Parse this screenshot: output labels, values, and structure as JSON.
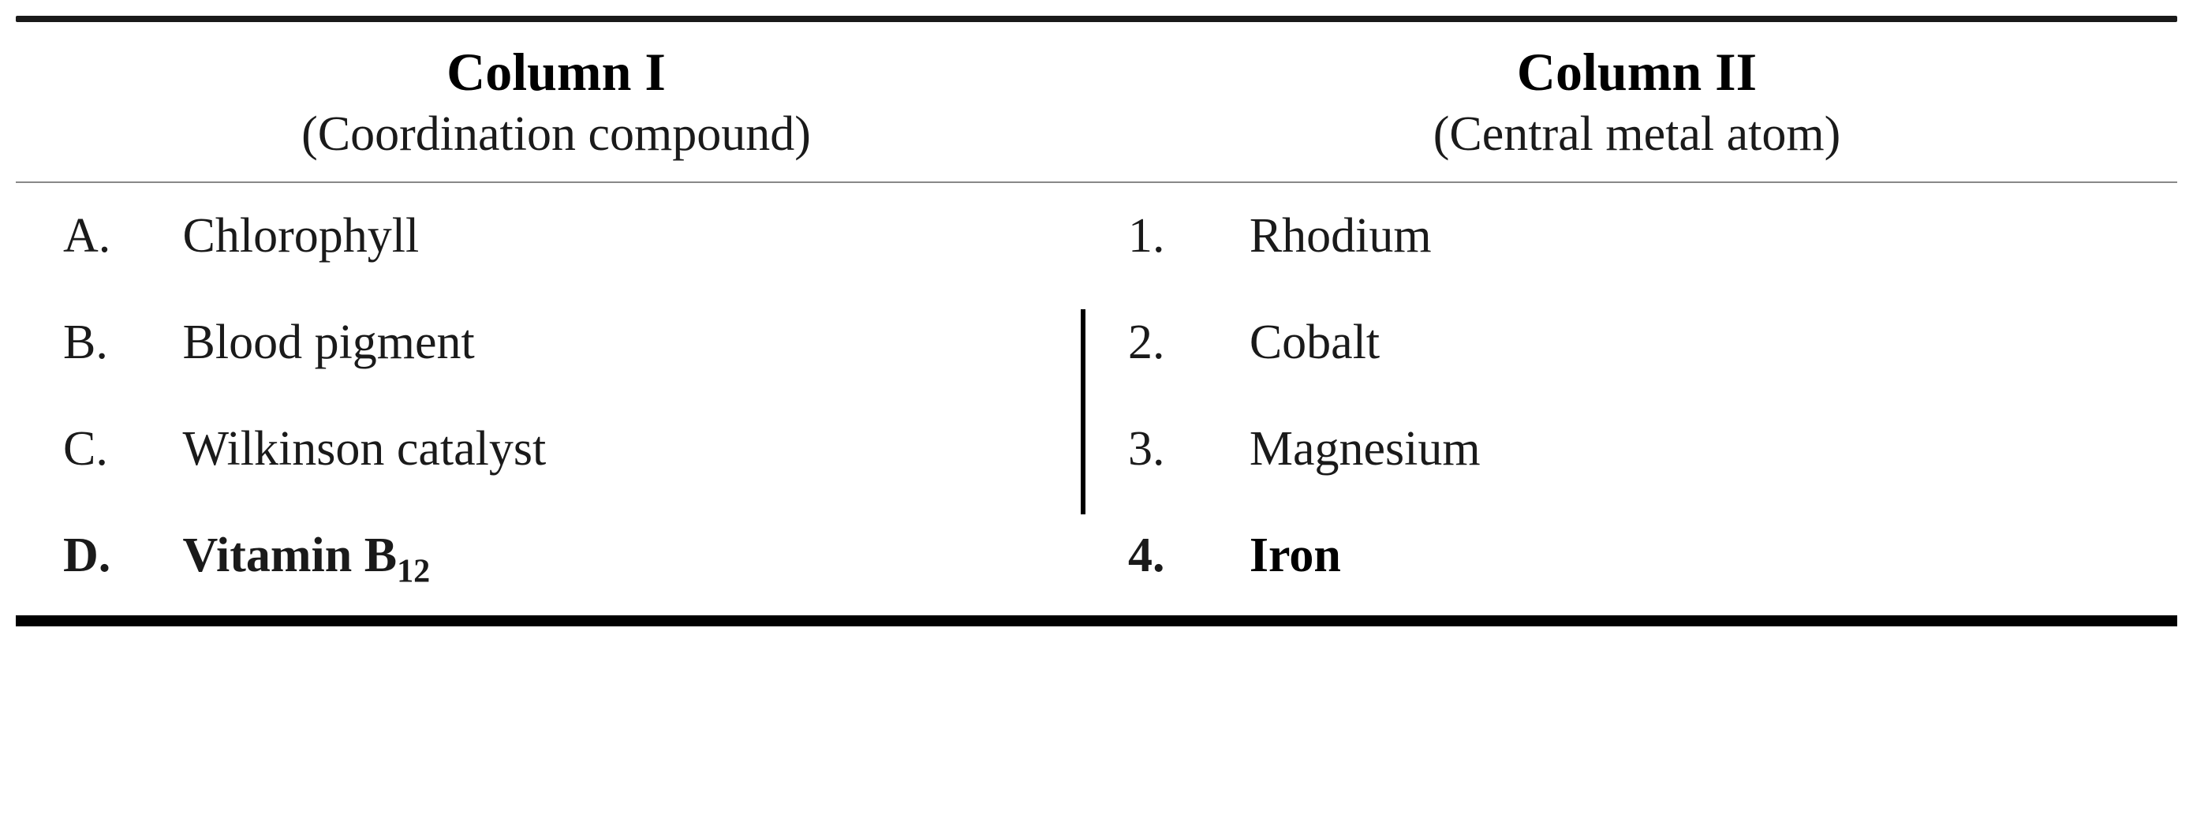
{
  "table": {
    "colors": {
      "background": "#ffffff",
      "text_primary": "#1a1a1a",
      "text_faded": "#666666",
      "border_top": "#1a1a1a",
      "border_bottom": "#000000",
      "header_divider": "#888888"
    },
    "typography": {
      "font_family": "Georgia, 'Times New Roman', serif",
      "header_title_fontsize": 68,
      "header_subtitle_fontsize": 62,
      "row_fontsize": 62,
      "header_title_weight": "bold"
    },
    "columns": [
      {
        "title": "Column I",
        "subtitle": "(Coordination compound)"
      },
      {
        "title": "Column II",
        "subtitle": "(Central metal atom)"
      }
    ],
    "rows": [
      {
        "label": "A.",
        "compound": "Chlorophyll",
        "num": "1.",
        "metal": "Rhodium",
        "metal_faded": true
      },
      {
        "label": "B.",
        "compound": "Blood pigment",
        "num": "2.",
        "metal": "Cobalt",
        "metal_faded": true
      },
      {
        "label": "C.",
        "compound": "Wilkinson catalyst",
        "num": "3.",
        "metal": "Magnesium",
        "metal_faded": true,
        "has_divider": true
      },
      {
        "label": "D.",
        "compound_html": "Vitamin B<sub>12</sub>",
        "compound": "Vitamin B12",
        "num": "4.",
        "metal": "Iron",
        "bold": true,
        "has_divider": true
      }
    ],
    "layout": {
      "border_top_height": 8,
      "border_bottom_height": 14,
      "header_divider_height": 2,
      "aspect_width": 2780,
      "aspect_height": 1061
    }
  }
}
